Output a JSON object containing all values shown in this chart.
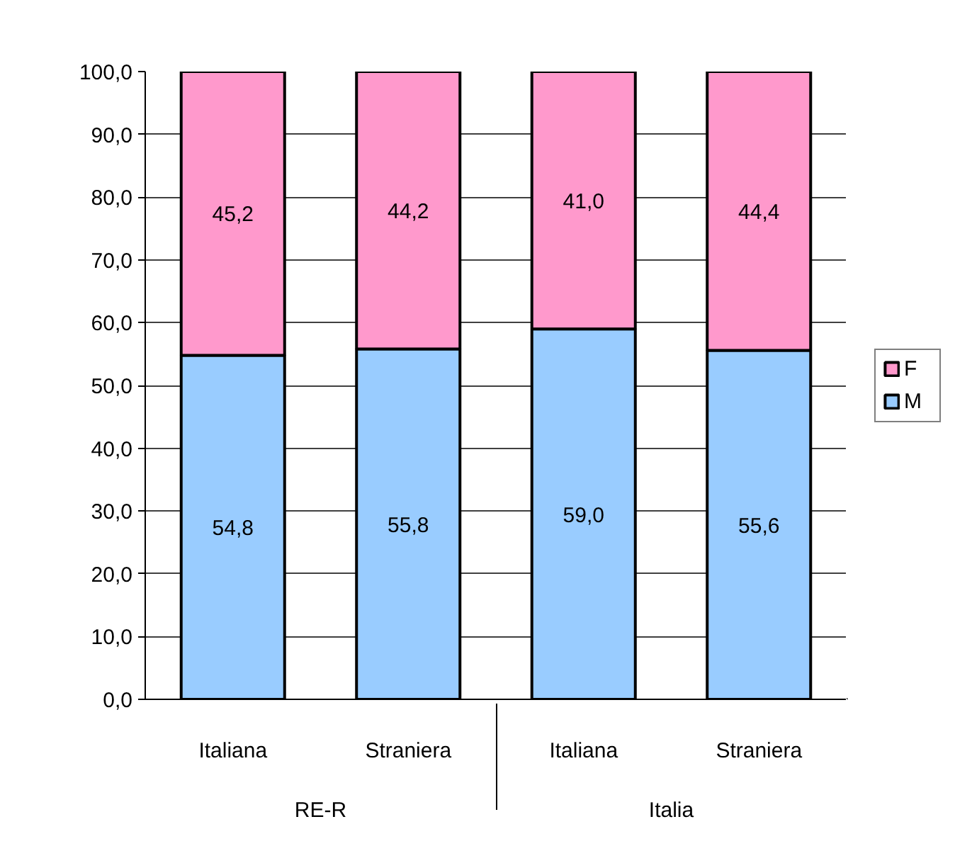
{
  "chart_data": {
    "type": "bar",
    "stacked": true,
    "categories": [
      "Italiana",
      "Straniera",
      "Italiana",
      "Straniera"
    ],
    "annotations": [
      "RE-R",
      "Italia"
    ],
    "series": [
      {
        "name": "M",
        "color": "#99ccff",
        "values": [
          54.8,
          55.8,
          59.0,
          55.6
        ],
        "value_labels": [
          "54,8",
          "55,8",
          "59,0",
          "55,6"
        ]
      },
      {
        "name": "F",
        "color": "#ff99cc",
        "values": [
          45.2,
          44.2,
          41.0,
          44.4
        ],
        "value_labels": [
          "45,2",
          "44,2",
          "41,0",
          "44,4"
        ]
      }
    ],
    "ylim": [
      0,
      100
    ],
    "yticks": [
      {
        "value": 0,
        "label": "0,0"
      },
      {
        "value": 10,
        "label": "10,0"
      },
      {
        "value": 20,
        "label": "20,0"
      },
      {
        "value": 30,
        "label": "30,0"
      },
      {
        "value": 40,
        "label": "40,0"
      },
      {
        "value": 50,
        "label": "50,0"
      },
      {
        "value": 60,
        "label": "60,0"
      },
      {
        "value": 70,
        "label": "70,0"
      },
      {
        "value": 80,
        "label": "80,0"
      },
      {
        "value": 90,
        "label": "90,0"
      },
      {
        "value": 100,
        "label": "100,0"
      }
    ],
    "grid": "y",
    "legend": "right"
  }
}
